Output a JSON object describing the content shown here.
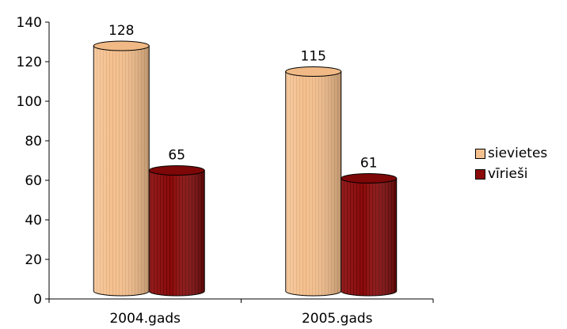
{
  "chart_data": {
    "type": "bar",
    "categories": [
      "2004.gads",
      "2005.gads"
    ],
    "series": [
      {
        "name": "sievietes",
        "values": [
          128,
          115
        ],
        "color": "#f4c08e"
      },
      {
        "name": "vīrieši",
        "values": [
          65,
          61
        ],
        "color": "#8b0a0a"
      }
    ],
    "ylim": [
      0,
      140
    ],
    "yticks": [
      "0",
      "20",
      "40",
      "60",
      "80",
      "100",
      "120",
      "140"
    ],
    "grid": false,
    "legend_position": "right",
    "style": "3d-cylinder"
  }
}
